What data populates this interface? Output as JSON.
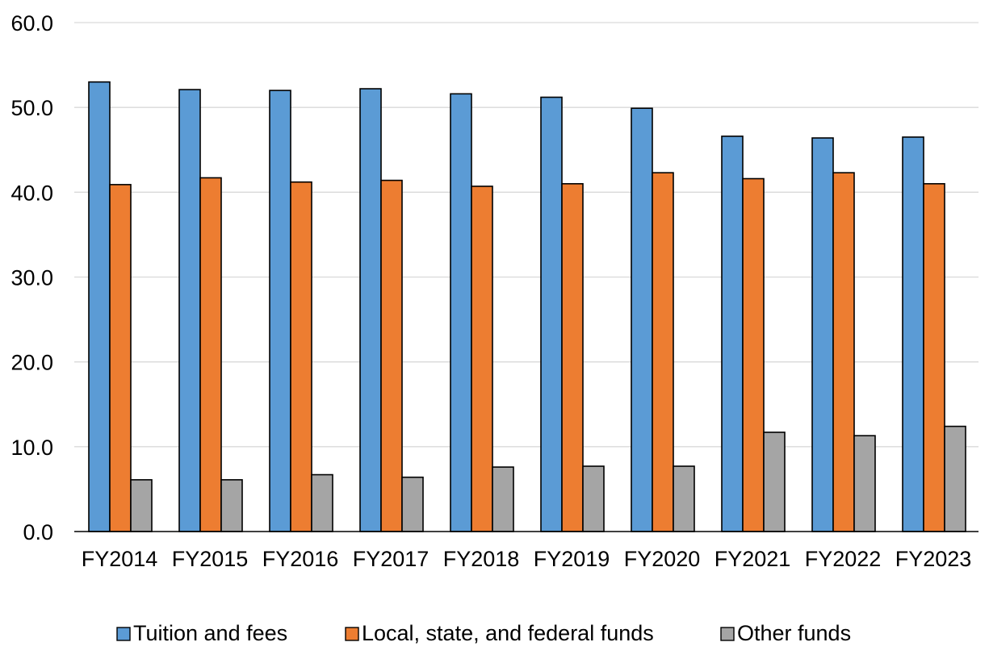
{
  "chart_data": {
    "type": "bar",
    "title": "",
    "xlabel": "",
    "ylabel": "",
    "ylim": [
      0,
      60
    ],
    "yticks": [
      0,
      10,
      20,
      30,
      40,
      50,
      60
    ],
    "ytick_labels": [
      "0.0",
      "10.0",
      "20.0",
      "30.0",
      "40.0",
      "50.0",
      "60.0"
    ],
    "grid": true,
    "legend_position": "bottom",
    "categories": [
      "FY2014",
      "FY2015",
      "FY2016",
      "FY2017",
      "FY2018",
      "FY2019",
      "FY2020",
      "FY2021",
      "FY2022",
      "FY2023"
    ],
    "series": [
      {
        "name": "Tuition and fees",
        "color": "#5b9bd5",
        "values": [
          53.0,
          52.1,
          52.0,
          52.2,
          51.6,
          51.2,
          49.9,
          46.6,
          46.4,
          46.5
        ]
      },
      {
        "name": "Local, state, and federal funds",
        "color": "#ed7d31",
        "values": [
          40.9,
          41.7,
          41.2,
          41.4,
          40.7,
          41.0,
          42.3,
          41.6,
          42.3,
          41.0
        ]
      },
      {
        "name": "Other funds",
        "color": "#a5a5a5",
        "values": [
          6.1,
          6.1,
          6.7,
          6.4,
          7.6,
          7.7,
          7.7,
          11.7,
          11.3,
          12.4
        ]
      }
    ]
  }
}
